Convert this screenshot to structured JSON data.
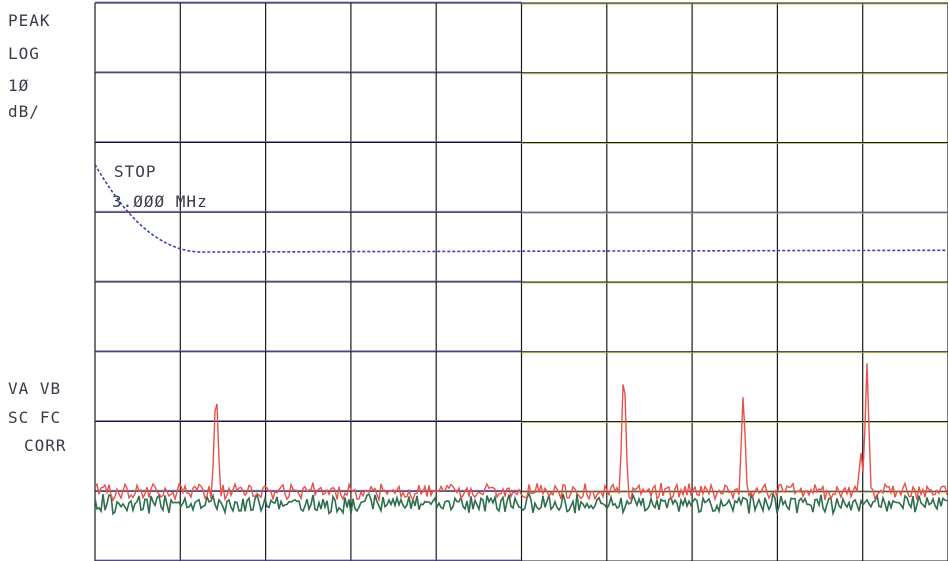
{
  "chart_data": {
    "type": "line",
    "title": "",
    "xlabel": "",
    "ylabel": "",
    "scale_labels": [
      "PEAK",
      "LOG",
      "1Ø",
      "dB/"
    ],
    "stop_label": "STOP",
    "stop_value": "3.ØØØ MHz",
    "status_labels": [
      "VA  VB",
      "SC  FC",
      "CORR"
    ],
    "y_scale": "log",
    "y_units_per_division": 10,
    "x_divisions": 10,
    "y_divisions": 8,
    "grid": true,
    "series": [
      {
        "color": "#e8504a",
        "noise_floor_div": 1.0,
        "peaks": [
          {
            "x_div": 1.42,
            "height_div": 1.6
          },
          {
            "x_div": 6.2,
            "height_div": 1.95
          },
          {
            "x_div": 7.6,
            "height_div": 1.45
          },
          {
            "x_div": 8.98,
            "height_div": 0.55
          },
          {
            "x_div": 9.05,
            "height_div": 1.85
          }
        ]
      },
      {
        "color": "#2e6e4e",
        "noise_floor_div": 0.82
      }
    ],
    "colors": {
      "grid_black": "#1a1a1a",
      "grid_purple": "#6a5acd",
      "grid_olive": "#b5b537",
      "dashed_trace": "#3b44b8"
    }
  }
}
